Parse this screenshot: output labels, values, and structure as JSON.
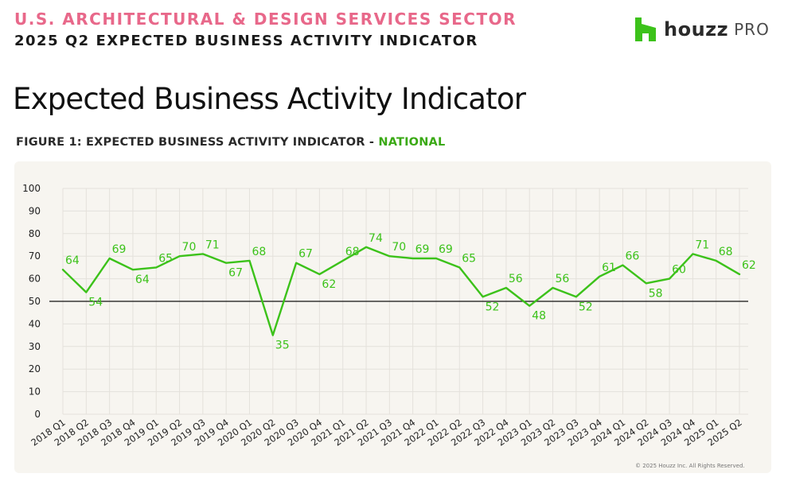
{
  "header": {
    "sector_line": "U.S. ARCHITECTURAL & DESIGN SERVICES SECTOR",
    "report_line": "2025 Q2 EXPECTED BUSINESS ACTIVITY INDICATOR"
  },
  "logo": {
    "word": "houzz",
    "suffix": "PRO",
    "icon": "houzz-house-icon"
  },
  "page_title": "Expected Business Activity Indicator",
  "figure": {
    "caption_prefix": "FIGURE 1: EXPECTED BUSINESS ACTIVITY INDICATOR - ",
    "caption_highlight": "NATIONAL"
  },
  "colors": {
    "accent_pink": "#e8688a",
    "series_green": "#3cc21a",
    "highlight_green": "#3aa914",
    "panel_bg": "#f7f5f0"
  },
  "chart_data": {
    "type": "line",
    "title": "",
    "xlabel": "",
    "ylabel": "",
    "ylim": [
      0,
      100
    ],
    "yticks": [
      0,
      10,
      20,
      30,
      40,
      50,
      60,
      70,
      80,
      90,
      100
    ],
    "grid": true,
    "reference_line": 50,
    "categories": [
      "2018 Q1",
      "2018 Q2",
      "2018 Q3",
      "2018 Q4",
      "2019 Q1",
      "2019 Q2",
      "2019 Q3",
      "2019 Q4",
      "2020 Q1",
      "2020 Q2",
      "2020 Q3",
      "2020 Q4",
      "2021 Q1",
      "2021 Q2",
      "2021 Q3",
      "2021 Q4",
      "2022 Q1",
      "2022 Q2",
      "2022 Q3",
      "2022 Q4",
      "2023 Q1",
      "2023 Q2",
      "2023 Q3",
      "2023 Q4",
      "2024 Q1",
      "2024 Q2",
      "2024 Q3",
      "2024 Q4",
      "2025 Q1",
      "2025 Q2"
    ],
    "series": [
      {
        "values": [
          64,
          54,
          69,
          64,
          65,
          70,
          71,
          67,
          68,
          35,
          67,
          62,
          68,
          74,
          70,
          69,
          69,
          65,
          52,
          56,
          48,
          56,
          52,
          61,
          66,
          58,
          60,
          71,
          68,
          62
        ]
      }
    ]
  },
  "copyright": "© 2025 Houzz Inc. All Rights Reserved."
}
